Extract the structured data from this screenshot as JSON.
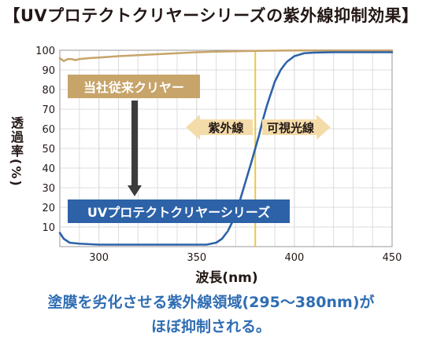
{
  "title": "【UVプロテクトクリヤーシリーズの紫外線抑制効果】",
  "caption_lines": [
    "塗膜を劣化させる紫外線領域(295〜380nm)が",
    "ほぼ抑制される。"
  ],
  "colors": {
    "conventional": "#c7a46a",
    "uv_series": "#2d62a8",
    "marker_line": "#e9c64a",
    "uv_region_arrow": "#f4dcaa",
    "visible_region_arrow": "#f4dcaa",
    "down_arrow": "#3c3c3c"
  },
  "annotations": {
    "conventional_label": "当社従来クリヤー",
    "uv_series_label": "UVプロテクトクリヤーシリーズ",
    "uv_region": "紫外線",
    "visible_region": "可視光線"
  },
  "chart_data": {
    "type": "line",
    "title": "【UVプロテクトクリヤーシリーズの紫外線抑制効果】",
    "xlabel": "波長(nm)",
    "ylabel": "透過率(%)",
    "xlim": [
      280,
      450
    ],
    "ylim": [
      0,
      100
    ],
    "xticks": [
      300,
      350,
      400,
      450
    ],
    "yticks": [
      10,
      20,
      30,
      40,
      50,
      60,
      70,
      80,
      90,
      100
    ],
    "grid": true,
    "marker_x": 380,
    "series": [
      {
        "name": "当社従来クリヤー",
        "x": [
          280,
          282,
          284,
          286,
          288,
          290,
          295,
          300,
          310,
          320,
          330,
          340,
          350,
          360,
          370,
          380,
          390,
          400,
          420,
          450
        ],
        "values": [
          96,
          94.5,
          95.5,
          95.5,
          95,
          95.5,
          96,
          96.3,
          97,
          97.5,
          98,
          98.5,
          99,
          99.3,
          99.5,
          99.7,
          99.8,
          99.9,
          99.9,
          99.9
        ]
      },
      {
        "name": "UVプロテクトクリヤーシリーズ",
        "x": [
          280,
          282,
          285,
          290,
          300,
          320,
          340,
          355,
          360,
          363,
          366,
          369,
          372,
          375,
          378,
          380,
          382,
          384,
          386,
          388,
          390,
          393,
          396,
          400,
          405,
          410,
          420,
          450
        ],
        "values": [
          7,
          4,
          2,
          1.5,
          1,
          1,
          1,
          1,
          2,
          4,
          8,
          14,
          23,
          33,
          43,
          50,
          57,
          65,
          72,
          78,
          84,
          90,
          94,
          97,
          98.5,
          98.8,
          99,
          99
        ]
      }
    ]
  }
}
